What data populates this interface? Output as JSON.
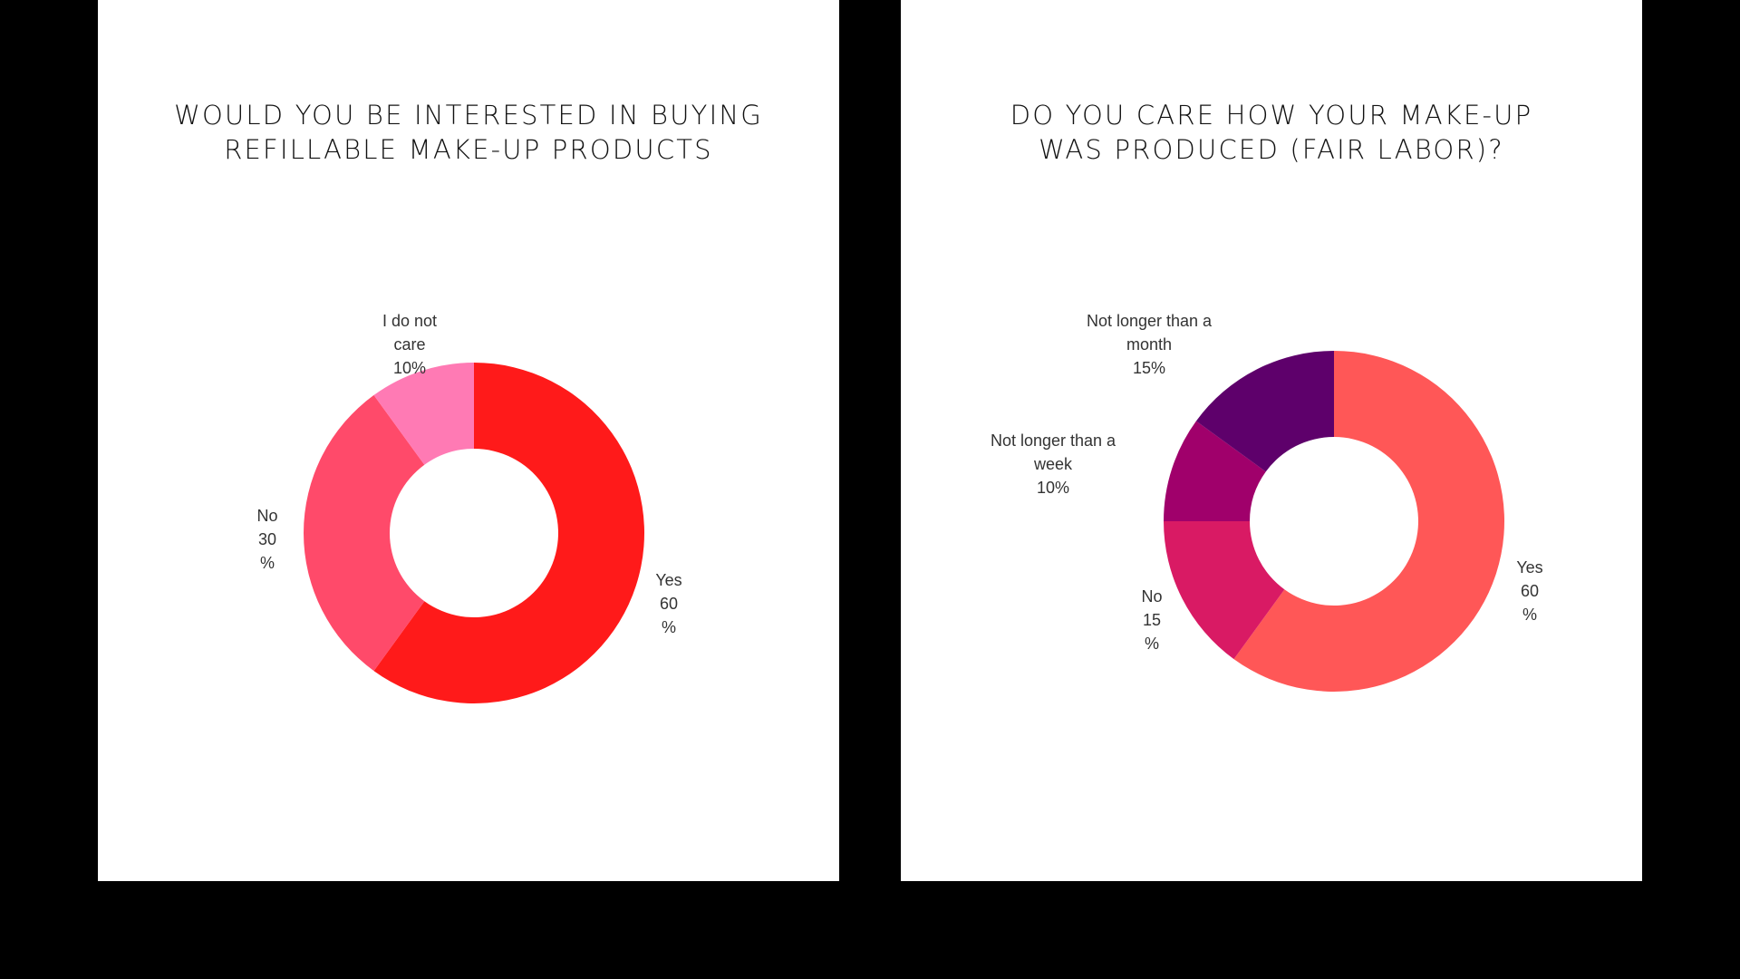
{
  "chart_data": [
    {
      "type": "pie",
      "variant": "donut",
      "title": "WOULD YOU BE INTERESTED IN BUYING REFILLABLE MAKE-UP PRODUCTS",
      "title_lines": [
        "WOULD YOU BE INTERESTED IN BUYING",
        "REFILLABLE MAKE-UP PRODUCTS"
      ],
      "slices": [
        {
          "name": "Yes",
          "value": 60,
          "color": "#ff1a1a",
          "label_lines": [
            "Yes",
            "60",
            "%"
          ]
        },
        {
          "name": "No",
          "value": 30,
          "color": "#ff4a6a",
          "label_lines": [
            "No",
            "30",
            "%"
          ]
        },
        {
          "name": "I do not care",
          "value": 10,
          "color": "#ff7ab4",
          "label_lines": [
            "I do not",
            "care",
            "10%"
          ]
        }
      ],
      "legend": "none"
    },
    {
      "type": "pie",
      "variant": "donut",
      "title": "DO YOU CARE HOW YOUR MAKE-UP WAS PRODUCED (FAIR LABOR)?",
      "title_lines": [
        "DO YOU CARE HOW YOUR MAKE-UP",
        "WAS PRODUCED (FAIR LABOR)?"
      ],
      "slices": [
        {
          "name": "Yes",
          "value": 60,
          "color": "#ff5757",
          "label_lines": [
            "Yes",
            "60",
            "%"
          ]
        },
        {
          "name": "No",
          "value": 15,
          "color": "#d91a64",
          "label_lines": [
            "No",
            "15",
            "%"
          ]
        },
        {
          "name": "Not longer than a week",
          "value": 10,
          "color": "#a0006b",
          "label_lines": [
            "Not longer than a",
            "week",
            "10%"
          ]
        },
        {
          "name": "Not longer than a month",
          "value": 15,
          "color": "#5e006b",
          "label_lines": [
            "Not longer than a",
            "month",
            "15%"
          ]
        }
      ],
      "legend": "none"
    }
  ]
}
